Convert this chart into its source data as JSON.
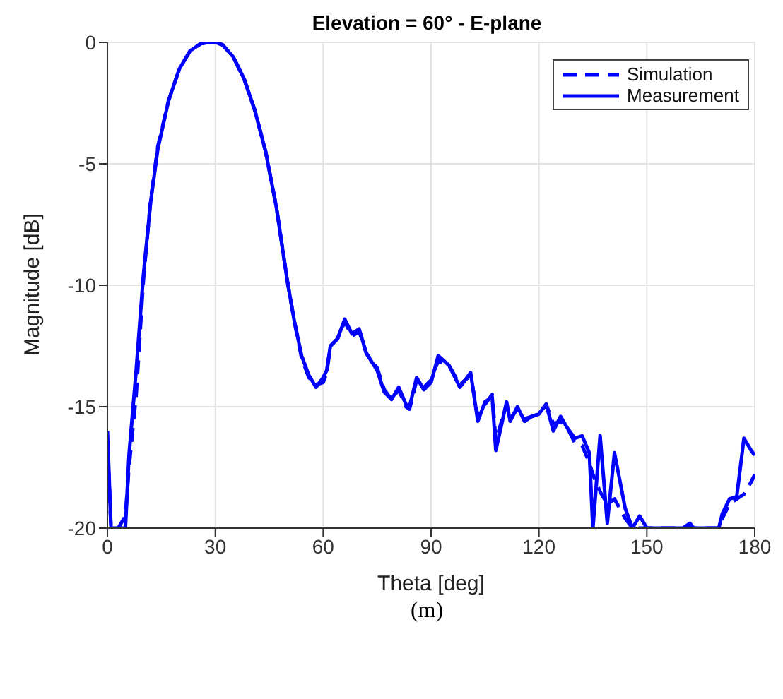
{
  "chart_data": {
    "type": "line",
    "title": "Elevation = 60° - E-plane",
    "xlabel": "Theta [deg]",
    "ylabel": "Magnitude [dB]",
    "annotations": [
      "(m)"
    ],
    "x": [
      0,
      1,
      3,
      5,
      6,
      8,
      10,
      12,
      14,
      17,
      20,
      23,
      26,
      28,
      30,
      32,
      35,
      38,
      41,
      44,
      47,
      50,
      52,
      54,
      56,
      58,
      60,
      61,
      62,
      64,
      66,
      68,
      70,
      72,
      75,
      77,
      79,
      81,
      83,
      84,
      86,
      88,
      90,
      92,
      95,
      98,
      101,
      103,
      105,
      107,
      108,
      111,
      112,
      114,
      116,
      118,
      120,
      122,
      124,
      126,
      128,
      130,
      132,
      134,
      135,
      137,
      139,
      141,
      144,
      146,
      148,
      150,
      155,
      160,
      162,
      163,
      166,
      170,
      171,
      173,
      175,
      177,
      179,
      180
    ],
    "series": [
      {
        "name": "Simulation",
        "color": "#0000ff",
        "line_style": "dashed",
        "values": [
          -16.5,
          -20,
          -20,
          -19.5,
          -17.5,
          -14.5,
          -9.8,
          -6.5,
          -4.3,
          -2.4,
          -1.1,
          -0.35,
          -0.05,
          0,
          0,
          -0.1,
          -0.6,
          -1.5,
          -2.8,
          -4.5,
          -6.8,
          -9.8,
          -11.5,
          -13,
          -13.8,
          -14.1,
          -14,
          -13.6,
          -12.5,
          -12.2,
          -11.5,
          -12.1,
          -11.9,
          -12.8,
          -13.4,
          -14.3,
          -14.7,
          -14.3,
          -15,
          -15.1,
          -13.9,
          -14.2,
          -13.9,
          -13.1,
          -13.3,
          -14.1,
          -13.7,
          -15.4,
          -14.9,
          -14.5,
          -16.4,
          -14.9,
          -15.5,
          -15.1,
          -15.5,
          -15.4,
          -15.3,
          -14.9,
          -15.7,
          -15.6,
          -15.9,
          -16.5,
          -16.6,
          -17.3,
          -17.8,
          -18.5,
          -19,
          -18.8,
          -19.6,
          -20,
          -20,
          -20,
          -20,
          -20,
          -19.9,
          -20,
          -20,
          -20,
          -19.6,
          -19,
          -18.8,
          -18.6,
          -18.1,
          -17.8
        ]
      },
      {
        "name": "Measurement",
        "color": "#0000ff",
        "line_style": "solid",
        "values": [
          -16,
          -20,
          -20,
          -20,
          -17,
          -13.5,
          -9.6,
          -6.6,
          -4.4,
          -2.4,
          -1.1,
          -0.35,
          -0.05,
          0,
          0,
          -0.1,
          -0.6,
          -1.5,
          -2.8,
          -4.5,
          -6.8,
          -9.8,
          -11.5,
          -12.9,
          -13.7,
          -14.2,
          -13.8,
          -13.5,
          -12.5,
          -12.2,
          -11.4,
          -12,
          -11.8,
          -12.8,
          -13.5,
          -14.4,
          -14.7,
          -14.2,
          -14.9,
          -15,
          -13.8,
          -14.3,
          -14,
          -12.9,
          -13.3,
          -14.2,
          -13.6,
          -15.6,
          -14.8,
          -14.6,
          -16.8,
          -14.8,
          -15.6,
          -15,
          -15.6,
          -15.4,
          -15.3,
          -14.9,
          -16,
          -15.4,
          -15.9,
          -16.3,
          -16.2,
          -16.9,
          -20,
          -16.2,
          -19.8,
          -16.9,
          -19.2,
          -20,
          -19.5,
          -20,
          -20,
          -20,
          -19.8,
          -20,
          -20,
          -20,
          -19.4,
          -18.8,
          -18.7,
          -16.3,
          -16.8,
          -17
        ]
      }
    ],
    "xlim": [
      0,
      180
    ],
    "xticks": [
      0,
      30,
      60,
      90,
      120,
      150,
      180
    ],
    "ylim": [
      -20,
      0
    ],
    "yticks": [
      -20,
      -15,
      -10,
      -5,
      0
    ],
    "grid": true,
    "legend": "top right",
    "marker": "none"
  }
}
